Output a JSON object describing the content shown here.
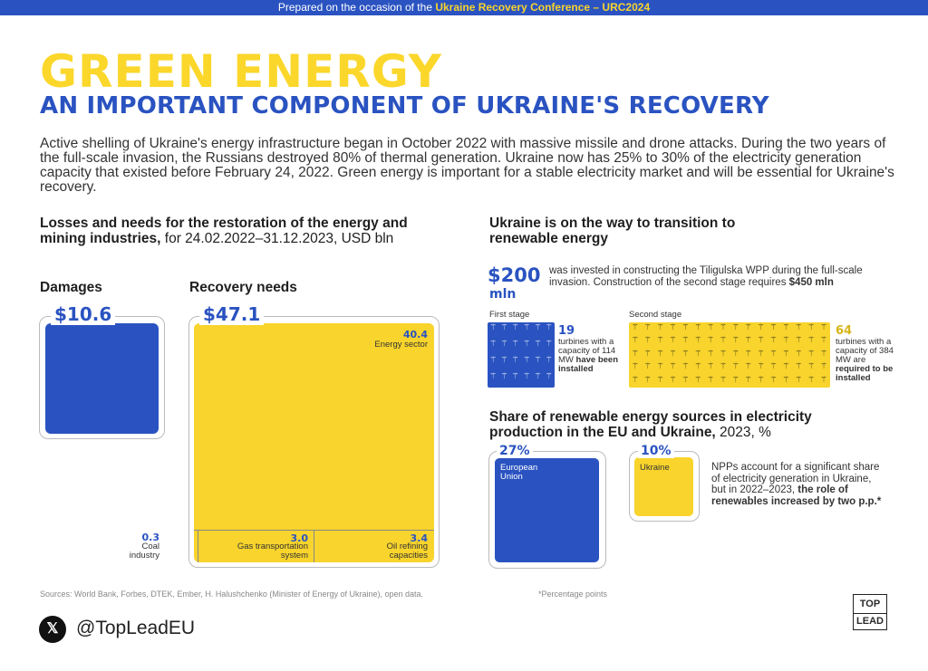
{
  "topbar": {
    "prefix": "Prepared on the occasion of the",
    "highlight": "Ukraine Recovery Conference – URC2024"
  },
  "title": "GREEN ENERGY",
  "subtitle": "AN IMPORTANT COMPONENT OF UKRAINE'S RECOVERY",
  "intro": "Active shelling of Ukraine's energy infrastructure began in October 2022 with massive missile and drone attacks. During the two years of the full-scale invasion, the Russians destroyed 80% of thermal generation. Ukraine now has 25% to 30% of the electricity generation capacity that existed before February 24, 2022. Green energy is important for a stable electricity market and will be essential for Ukraine's recovery.",
  "losses": {
    "heading_bold": "Losses and needs for the restoration of the energy and mining industries,",
    "heading_light": " for 24.02.2022–31.12.2023, USD bln",
    "damages_label": "Damages",
    "damages_value": "$10.6",
    "recovery_label": "Recovery needs",
    "recovery_value": "$47.1",
    "energy_value": "40.4",
    "energy_label": "Energy sector",
    "coal_value": "0.3",
    "coal_label": "Coal industry",
    "gas_value": "3.0",
    "gas_label": "Gas transportation system",
    "oil_value": "3.4",
    "oil_label": "Oil refining capacities"
  },
  "transition": {
    "heading": "Ukraine is on the way to transition to renewable energy",
    "amount": "$200",
    "amount_unit": "mln",
    "text": "was invested in constructing the Tiligulska WPP during the full-scale invasion. Construction of the second stage requires ",
    "text_bold": "$450 mln",
    "first_stage_label": "First stage",
    "first_count": "19",
    "first_text": "turbines with a capacity of 114 MW",
    "first_bold": "have been installed",
    "second_stage_label": "Second stage",
    "second_count": "64",
    "second_text": "turbines with a capacity of 384 MW are",
    "second_bold": "required to be installed"
  },
  "share": {
    "heading_bold": "Share of renewable energy sources in electricity production in the EU and Ukraine,",
    "heading_light": " 2023, %",
    "eu_value": "27%",
    "eu_label": "European Union",
    "ua_value": "10%",
    "ua_label": "Ukraine",
    "note": "NPPs account for a significant share of electricity generation in Ukraine, but in 2022–2023,",
    "note_bold": "the role of renewables increased by two p.p.*"
  },
  "footer": {
    "sources": "Sources: World Bank, Forbes, DTEK, Ember, H. Halushchenko (Minister of Energy of Ukraine), open data.",
    "footnote": "*Percentage points",
    "handle": "@TopLeadEU",
    "logo_top": "TOP",
    "logo_bottom": "LEAD"
  },
  "colors": {
    "blue": "#2a53c1",
    "yellow": "#f8d42c"
  },
  "icons": {
    "x": "x-logo-icon",
    "turbine": "wind-turbine-icon"
  }
}
